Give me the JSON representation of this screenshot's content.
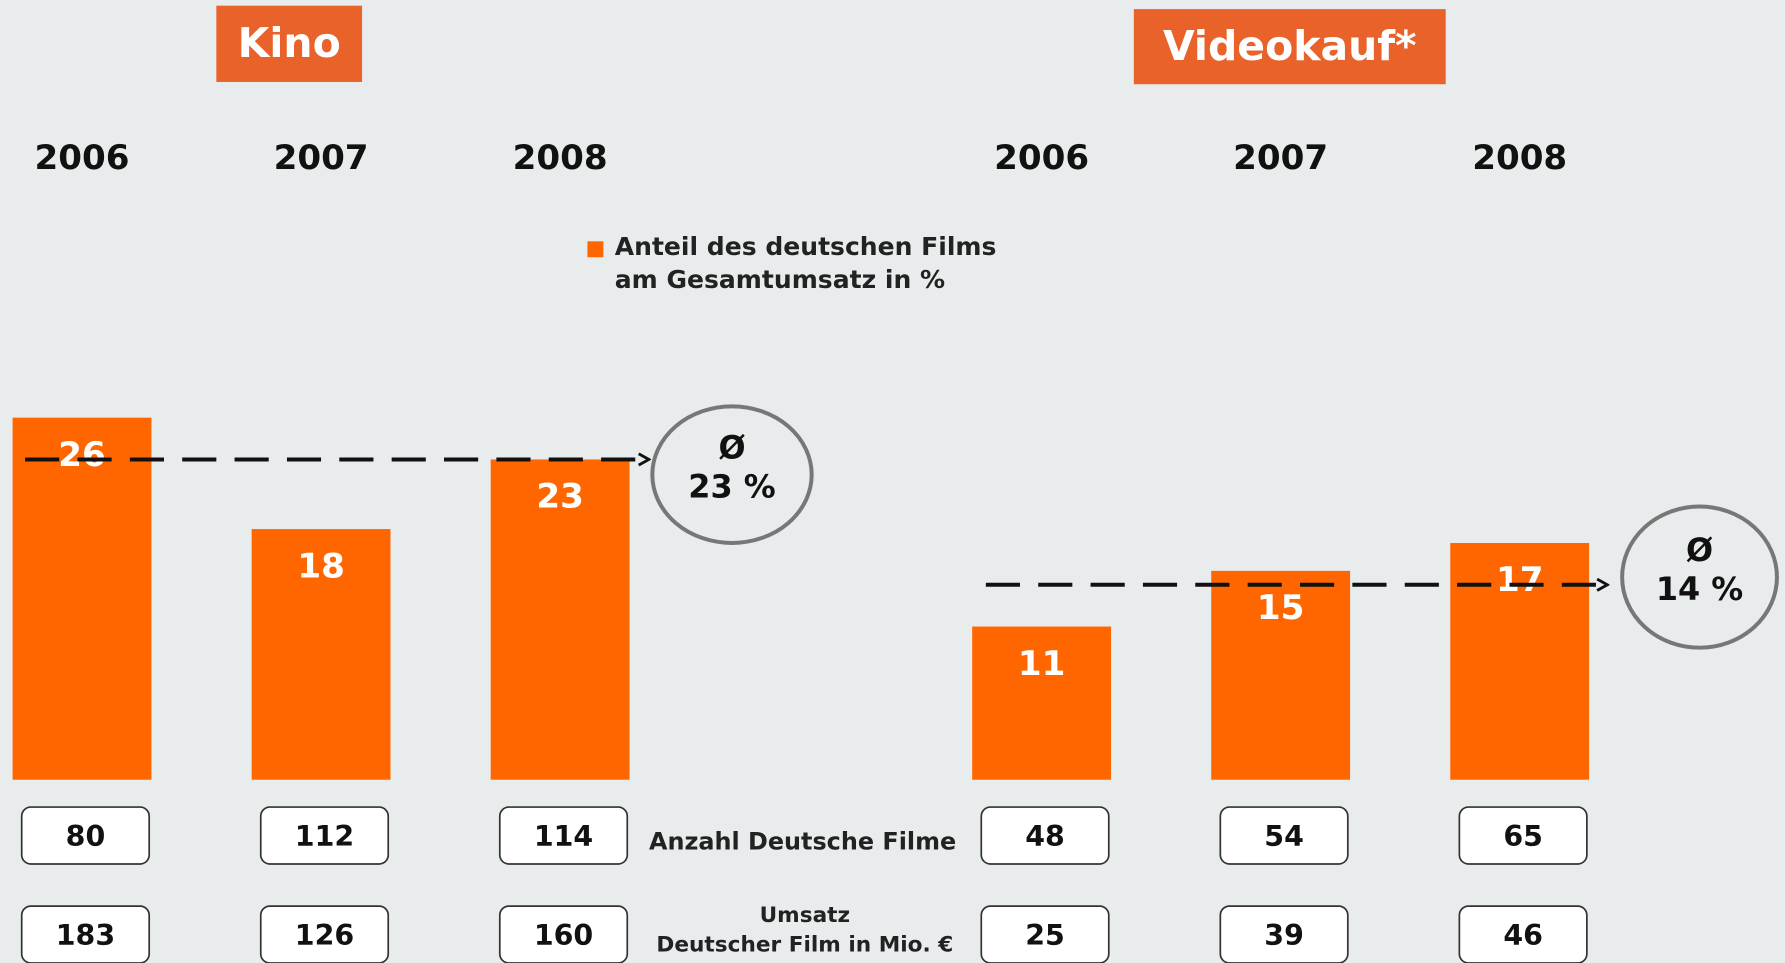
{
  "chart_data": [
    {
      "type": "bar",
      "title": "Kino",
      "categories": [
        "2006",
        "2007",
        "2008"
      ],
      "series": [
        {
          "name": "Anteil des deutschen Films\nam Gesamtumsatz in %",
          "color": "#ff6600",
          "values": [
            26,
            18,
            23
          ]
        }
      ],
      "ylim": [
        0,
        30
      ],
      "average": {
        "value": 23,
        "label": "23 %"
      },
      "average_symbol": "Ø",
      "films": [
        80,
        112,
        114
      ],
      "revenue": [
        183,
        126,
        160
      ]
    },
    {
      "type": "bar",
      "title": "Videokauf*",
      "categories": [
        "2006",
        "2007",
        "2008"
      ],
      "series": [
        {
          "color": "#ff6600",
          "values": [
            11,
            15,
            17
          ]
        }
      ],
      "ylim": [
        0,
        30
      ],
      "average": {
        "value": 14,
        "label": "14 %"
      },
      "average_symbol": "Ø",
      "films": [
        48,
        54,
        65
      ],
      "revenue": [
        25,
        39,
        46
      ]
    }
  ],
  "row_labels": {
    "films": "Anzahl Deutsche Filme",
    "revenue": "Umsatz\nDeutscher Film in Mio. €"
  }
}
